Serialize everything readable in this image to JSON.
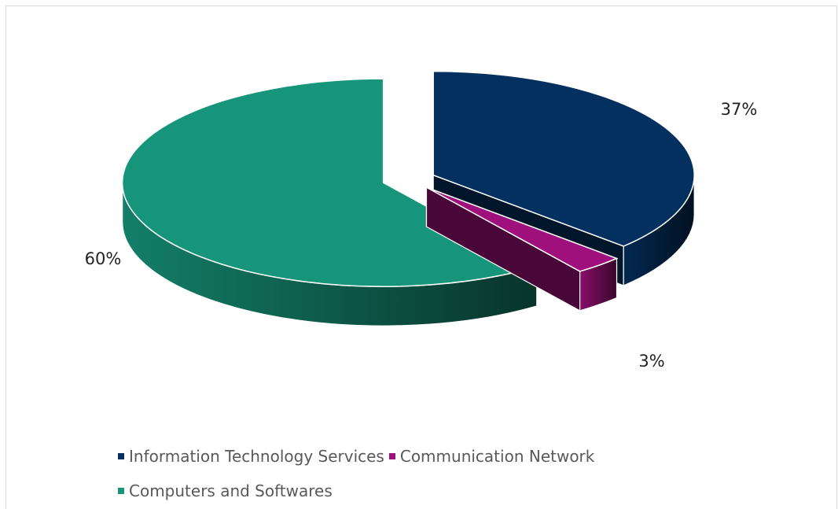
{
  "chart_data": {
    "type": "pie",
    "title": "",
    "slices": [
      {
        "label": "Information Technology Services",
        "value": 37,
        "data_label": "37%",
        "color": "#03305f"
      },
      {
        "label": "Communication Network",
        "value": 3,
        "data_label": "3%",
        "color": "#a0107d"
      },
      {
        "label": "Computers and Softwares",
        "value": 60,
        "data_label": "60%",
        "color": "#16957b"
      }
    ],
    "legend_position": "bottom"
  },
  "legend": {
    "items": [
      {
        "label": "Information Technology Services",
        "color": "#03305f"
      },
      {
        "label": "Communication Network",
        "color": "#a0107d"
      },
      {
        "label": "Computers and Softwares",
        "color": "#16957b"
      }
    ]
  }
}
